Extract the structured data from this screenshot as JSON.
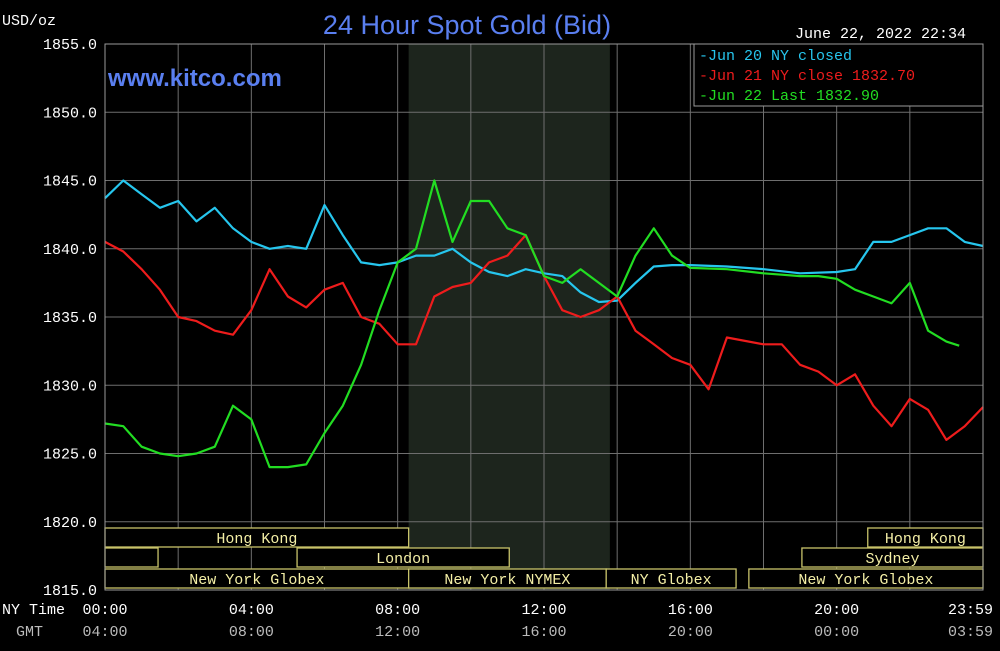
{
  "chart_data": {
    "type": "line",
    "title": "24 Hour Spot Gold (Bid)",
    "unit_label": "USD/oz",
    "timestamp": "June 22, 2022 22:34",
    "watermark": "www.kitco.com",
    "ylim": [
      1815,
      1855
    ],
    "yticks": [
      "1855.0",
      "1850.0",
      "1845.0",
      "1840.0",
      "1835.0",
      "1830.0",
      "1825.0",
      "1820.0",
      "1815.0"
    ],
    "x_row_labels": {
      "ny": "NY Time",
      "gmt": "GMT"
    },
    "xticks_ny": [
      "00:00",
      "04:00",
      "08:00",
      "12:00",
      "16:00",
      "20:00",
      "23:59"
    ],
    "xticks_gmt": [
      "04:00",
      "08:00",
      "12:00",
      "16:00",
      "20:00",
      "00:00",
      "03:59"
    ],
    "x_hours": [
      0,
      4,
      8,
      12,
      16,
      20,
      23.98
    ],
    "shaded_hours": [
      8.3,
      13.8
    ],
    "legend": [
      {
        "label": "Jun 20 NY closed",
        "color": "#26c6ee"
      },
      {
        "label": "Jun 21 NY close 1832.70",
        "color": "#ee1c1c"
      },
      {
        "label": "Jun 22 Last 1832.90",
        "color": "#22dd22"
      }
    ],
    "series": [
      {
        "name": "Jun 20",
        "color": "#26c6ee",
        "x": [
          0,
          0.5,
          1,
          1.5,
          2,
          2.5,
          3,
          3.5,
          4,
          4.5,
          5,
          5.5,
          6,
          6.5,
          7,
          7.5,
          8,
          8.5,
          9,
          9.5,
          10,
          10.5,
          11,
          11.5,
          12,
          12.5,
          13,
          13.5,
          14,
          14.5,
          15,
          15.5,
          16,
          17,
          18,
          19,
          20,
          20.5,
          21,
          21.5,
          22,
          22.5,
          23,
          23.5,
          24
        ],
        "y": [
          1843.7,
          1845,
          1844,
          1843,
          1843.5,
          1842,
          1843,
          1841.5,
          1840.5,
          1840,
          1840.2,
          1840,
          1843.2,
          1841,
          1839,
          1838.8,
          1839,
          1839.5,
          1839.5,
          1840,
          1839,
          1838.3,
          1838,
          1838.5,
          1838.2,
          1838,
          1836.8,
          1836.1,
          1836.2,
          1837.5,
          1838.7,
          1838.8,
          1838.8,
          1838.7,
          1838.5,
          1838.2,
          1838.3,
          1838.5,
          1840.5,
          1840.5,
          1841,
          1841.5,
          1841.5,
          1840.5,
          1840.2
        ]
      },
      {
        "name": "Jun 21",
        "color": "#ee1c1c",
        "x": [
          0,
          0.5,
          1,
          1.5,
          2,
          2.5,
          3,
          3.5,
          4,
          4.5,
          5,
          5.5,
          6,
          6.5,
          7,
          7.5,
          8,
          8.5,
          9,
          9.5,
          10,
          10.5,
          11,
          11.5,
          12,
          12.5,
          13,
          13.5,
          14,
          14.5,
          15,
          15.5,
          16,
          16.5,
          17,
          18,
          18.5,
          19,
          19.5,
          20,
          20.5,
          21,
          21.5,
          22,
          22.5,
          23,
          23.5,
          24
        ],
        "y": [
          1840.5,
          1839.8,
          1838.5,
          1837,
          1835,
          1834.7,
          1834,
          1833.7,
          1835.5,
          1838.5,
          1836.5,
          1835.7,
          1837,
          1837.5,
          1835,
          1834.5,
          1833,
          1833,
          1836.5,
          1837.2,
          1837.5,
          1839,
          1839.5,
          1841,
          1838,
          1835.5,
          1835,
          1835.5,
          1836.5,
          1834,
          1833,
          1832,
          1831.5,
          1829.7,
          1833.5,
          1833,
          1833,
          1831.5,
          1831,
          1830,
          1830.8,
          1828.5,
          1827,
          1829,
          1828.2,
          1826,
          1827,
          1828.4
        ]
      },
      {
        "name": "Jun 22",
        "color": "#22dd22",
        "x": [
          0,
          0.5,
          1,
          1.5,
          2,
          2.5,
          3,
          3.5,
          4,
          4.5,
          5,
          5.5,
          6,
          6.5,
          7,
          7.5,
          8,
          8.5,
          9,
          9.5,
          10,
          10.5,
          11,
          11.5,
          12,
          12.5,
          13,
          13.5,
          14,
          14.5,
          15,
          15.5,
          16,
          17,
          18,
          18.5,
          19,
          19.5,
          20,
          20.5,
          21,
          21.5,
          22,
          22.5,
          23,
          23.35
        ],
        "y": [
          1827.2,
          1827,
          1825.5,
          1825,
          1824.8,
          1825,
          1825.5,
          1828.5,
          1827.5,
          1824,
          1824,
          1824.2,
          1826.5,
          1828.5,
          1831.5,
          1835.5,
          1839,
          1840,
          1845,
          1840.5,
          1843.5,
          1843.5,
          1841.5,
          1841,
          1838,
          1837.5,
          1838.5,
          1837.5,
          1836.5,
          1839.5,
          1841.5,
          1839.5,
          1838.6,
          1838.5,
          1838.2,
          1838.1,
          1838,
          1838,
          1837.8,
          1837,
          1836.5,
          1836,
          1837.5,
          1834,
          1833.2,
          1832.9
        ]
      }
    ],
    "session_bars": [
      [
        {
          "label": "Hong Kong",
          "start": 0,
          "end": 8.3
        },
        {
          "label": "Hong Kong",
          "start": 20.85,
          "end": 24
        }
      ],
      [
        {
          "label": "",
          "start": 0,
          "end": 1.45
        },
        {
          "label": "London",
          "start": 5.25,
          "end": 11.05
        },
        {
          "label": "Sydney",
          "start": 19.05,
          "end": 24
        }
      ],
      [
        {
          "label": "New York Globex",
          "start": 0,
          "end": 8.3
        },
        {
          "label": "New York NYMEX",
          "start": 8.3,
          "end": 13.7
        },
        {
          "label": "NY Globex",
          "start": 13.7,
          "end": 17.25
        },
        {
          "label": "New York Globex",
          "start": 17.6,
          "end": 24
        }
      ]
    ]
  }
}
